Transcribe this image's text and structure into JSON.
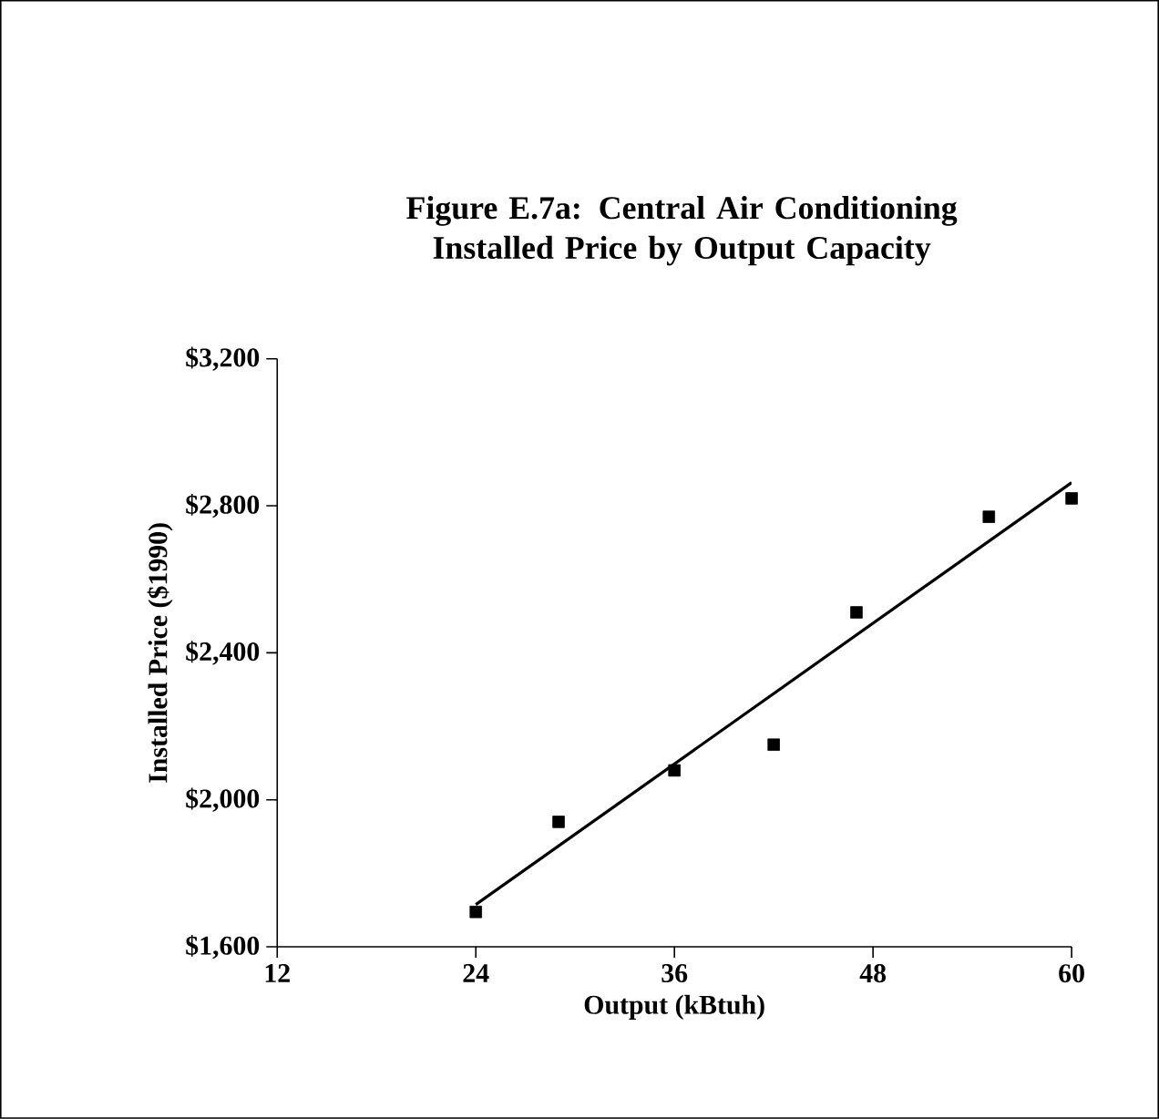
{
  "chart_data": {
    "type": "scatter",
    "title": "Figure E.7a: Central Air Conditioning\nInstalled Price by Output Capacity",
    "xlabel": "Output (kBtuh)",
    "ylabel": "Installed Price ($1990)",
    "xlim": [
      12,
      60
    ],
    "xticks": [
      12,
      24,
      36,
      48,
      60
    ],
    "ylim": [
      1600,
      3200
    ],
    "yticks": [
      {
        "value": 1600,
        "label": "$1,600"
      },
      {
        "value": 2000,
        "label": "$2,000"
      },
      {
        "value": 2400,
        "label": "$2,400"
      },
      {
        "value": 2800,
        "label": "$2,800"
      },
      {
        "value": 3200,
        "label": "$3,200"
      }
    ],
    "marker": "square",
    "series": [
      {
        "color": "#000000",
        "x": [
          24,
          29,
          36,
          42,
          47,
          55,
          60
        ],
        "values": [
          1695,
          1940,
          2080,
          2150,
          2510,
          2770,
          2820
        ]
      },
      {
        "type": "line",
        "color": "#000000",
        "x": [
          24,
          60
        ],
        "values": [
          1715,
          2863
        ],
        "marker": "none",
        "line_style": "solid"
      }
    ]
  }
}
